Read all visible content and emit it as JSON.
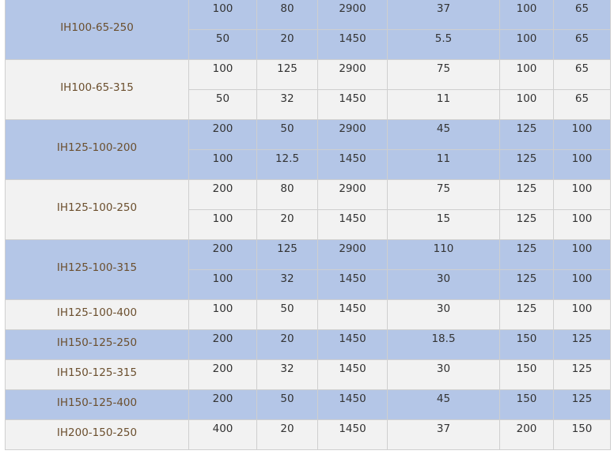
{
  "colors": {
    "band_blue": "#b4c6e7",
    "band_gray": "#f2f2f2",
    "model_text": "#6b4f2e",
    "value_text": "#333333"
  },
  "models": [
    {
      "model": "IH100-65-250",
      "rows": [
        [
          "100",
          "80",
          "2900",
          "37",
          "100",
          "65"
        ],
        [
          "50",
          "20",
          "1450",
          "5.5",
          "100",
          "65"
        ]
      ]
    },
    {
      "model": "IH100-65-315",
      "rows": [
        [
          "100",
          "125",
          "2900",
          "75",
          "100",
          "65"
        ],
        [
          "50",
          "32",
          "1450",
          "11",
          "100",
          "65"
        ]
      ]
    },
    {
      "model": "IH125-100-200",
      "rows": [
        [
          "200",
          "50",
          "2900",
          "45",
          "125",
          "100"
        ],
        [
          "100",
          "12.5",
          "1450",
          "11",
          "125",
          "100"
        ]
      ]
    },
    {
      "model": "IH125-100-250",
      "rows": [
        [
          "200",
          "80",
          "2900",
          "75",
          "125",
          "100"
        ],
        [
          "100",
          "20",
          "1450",
          "15",
          "125",
          "100"
        ]
      ]
    },
    {
      "model": "IH125-100-315",
      "rows": [
        [
          "200",
          "125",
          "2900",
          "110",
          "125",
          "100"
        ],
        [
          "100",
          "32",
          "1450",
          "30",
          "125",
          "100"
        ]
      ]
    },
    {
      "model": "IH125-100-400",
      "rows": [
        [
          "100",
          "50",
          "1450",
          "30",
          "125",
          "100"
        ]
      ]
    },
    {
      "model": "IH150-125-250",
      "rows": [
        [
          "200",
          "20",
          "1450",
          "18.5",
          "150",
          "125"
        ]
      ]
    },
    {
      "model": "IH150-125-315",
      "rows": [
        [
          "200",
          "32",
          "1450",
          "30",
          "150",
          "125"
        ]
      ]
    },
    {
      "model": "IH150-125-400",
      "rows": [
        [
          "200",
          "50",
          "1450",
          "45",
          "150",
          "125"
        ]
      ]
    },
    {
      "model": "IH200-150-250",
      "rows": [
        [
          "400",
          "20",
          "1450",
          "37",
          "200",
          "150"
        ]
      ]
    }
  ]
}
